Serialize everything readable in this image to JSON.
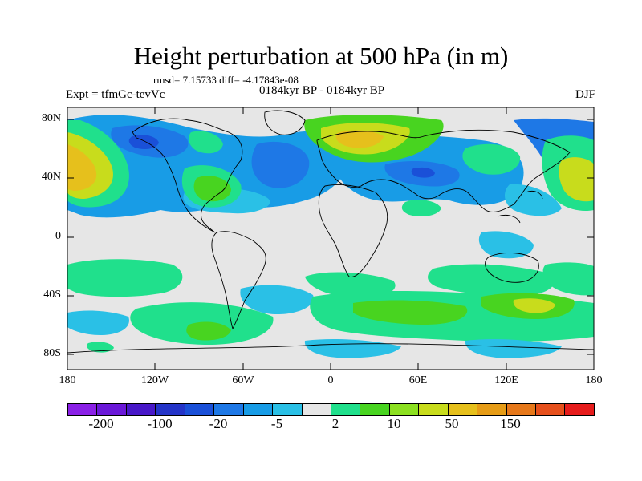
{
  "title": "Height perturbation at 500 hPa (in m)",
  "stats": "rmsd= 7.15733 diff= -4.17843e-08",
  "subtitle": "0184kyr BP - 0184kyr BP",
  "left_label": "Expt = tfmGc-tevVc",
  "right_label": "DJF",
  "axes": {
    "y_ticks": [
      "80N",
      "40N",
      "0",
      "40S",
      "80S"
    ],
    "x_ticks": [
      "180",
      "120W",
      "60W",
      "0",
      "60E",
      "120E",
      "180"
    ]
  },
  "colorbar": {
    "colors": [
      "#8a20e6",
      "#6a18d8",
      "#4818c8",
      "#2434c8",
      "#1a50d8",
      "#1e78e6",
      "#189ce6",
      "#2ac0e6",
      "#e6e6e6",
      "#20e08c",
      "#48d420",
      "#8ce020",
      "#c8dc1c",
      "#e6c01c",
      "#e69c16",
      "#e6781a",
      "#e6501c",
      "#e61c1c"
    ],
    "labels": [
      "-200",
      "-100",
      "-20",
      "-5",
      "2",
      "10",
      "50",
      "150"
    ]
  },
  "chart_data": {
    "type": "heatmap",
    "title": "Height perturbation at 500 hPa (in m)",
    "lon_range": [
      -180,
      180
    ],
    "lat_range": [
      -90,
      90
    ],
    "contour_levels": [
      -200,
      -100,
      -20,
      -5,
      2,
      10,
      50,
      150
    ],
    "regions": [
      {
        "feature": "positive anomaly",
        "lon": -170,
        "lat": 40,
        "level": 50
      },
      {
        "feature": "negative anomaly",
        "lon": -135,
        "lat": 60,
        "level": -20
      },
      {
        "feature": "positive anomaly",
        "lon": 15,
        "lat": 65,
        "level": 50
      },
      {
        "feature": "negative anomaly",
        "lon": -40,
        "lat": 45,
        "level": -20
      },
      {
        "feature": "negative anomaly",
        "lon": 60,
        "lat": 45,
        "level": -20
      },
      {
        "feature": "positive anomaly",
        "lon": 165,
        "lat": 45,
        "level": 10
      },
      {
        "feature": "positive anomaly",
        "lon": 140,
        "lat": -50,
        "level": 10
      }
    ]
  }
}
